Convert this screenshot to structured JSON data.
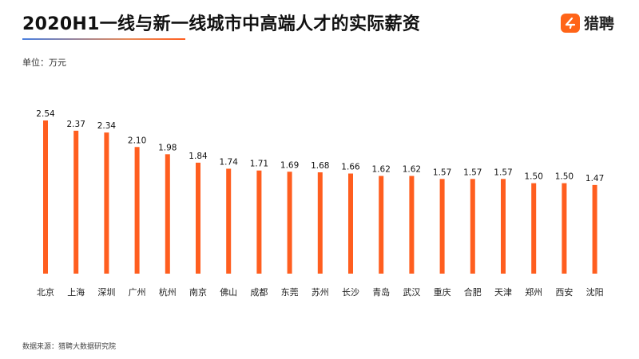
{
  "header": {
    "title": "2020H1一线与新一线城市中高端人才的实际薪资",
    "logo_text": "猎聘",
    "logo_icon": "liepin-logo-icon"
  },
  "unit_label": "单位：万元",
  "source_label": "数据来源：猎聘大数据研究院",
  "colors": {
    "bar": "#ff5e1f",
    "accent": "#ff6418"
  },
  "chart_data": {
    "type": "bar",
    "title": "2020H1一线与新一线城市中高端人才的实际薪资",
    "ylabel": "单位：万元",
    "xlabel": "",
    "ylim": [
      0,
      2.54
    ],
    "grid": false,
    "legend": "none",
    "categories": [
      "北京",
      "上海",
      "深圳",
      "广州",
      "杭州",
      "南京",
      "佛山",
      "成都",
      "东莞",
      "苏州",
      "长沙",
      "青岛",
      "武汉",
      "重庆",
      "合肥",
      "天津",
      "郑州",
      "西安",
      "沈阳"
    ],
    "values": [
      2.54,
      2.37,
      2.34,
      2.1,
      1.98,
      1.84,
      1.74,
      1.71,
      1.69,
      1.68,
      1.66,
      1.62,
      1.62,
      1.57,
      1.57,
      1.57,
      1.5,
      1.5,
      1.47
    ],
    "value_labels": [
      "2.54",
      "2.37",
      "2.34",
      "2.10",
      "1.98",
      "1.84",
      "1.74",
      "1.71",
      "1.69",
      "1.68",
      "1.66",
      "1.62",
      "1.62",
      "1.57",
      "1.57",
      "1.57",
      "1.50",
      "1.50",
      "1.47"
    ]
  }
}
